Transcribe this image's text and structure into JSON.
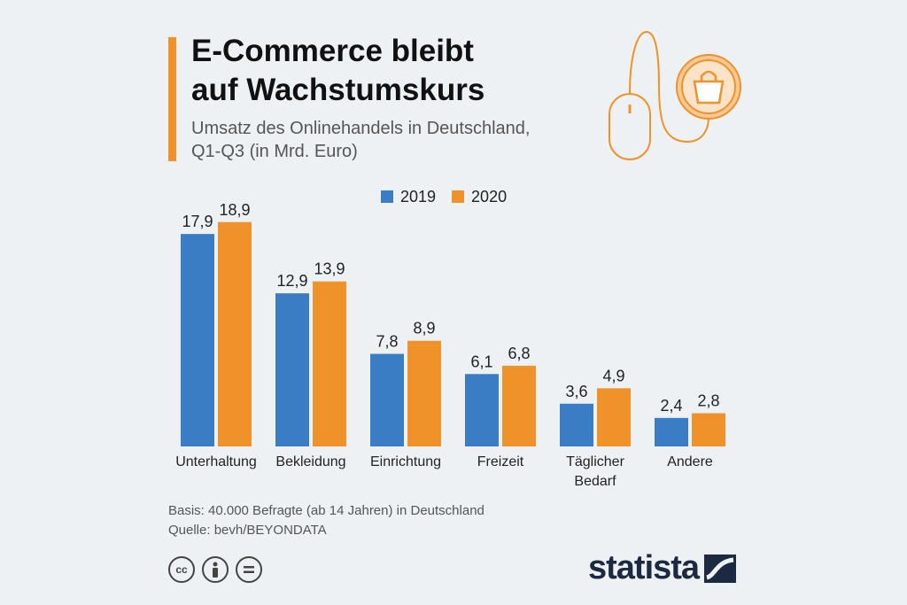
{
  "title_line1": "E-Commerce bleibt",
  "title_line2": "auf Wachstumskurs",
  "subtitle_line1": "Umsatz des Onlinehandels in Deutschland,",
  "subtitle_line2": "Q1-Q3 (in Mrd. Euro)",
  "footnote_basis": "Basis: 40.000 Befragte (ab 14 Jahren) in Deutschland",
  "footnote_source": "Quelle: bevh/BEYONDATA",
  "brand": "statista",
  "license_icons": [
    "cc-icon",
    "attribution-icon",
    "no-derivatives-icon"
  ],
  "license_cc_text": "cc",
  "decoration_icons": [
    "computer-mouse-icon",
    "shopping-bag-icon"
  ],
  "chart_data": {
    "type": "bar",
    "categories": [
      [
        "Unterhaltung"
      ],
      [
        "Bekleidung"
      ],
      [
        "Einrichtung"
      ],
      [
        "Freizeit"
      ],
      [
        "Täglicher",
        "Bedarf"
      ],
      [
        "Andere"
      ]
    ],
    "series": [
      {
        "name": "2019",
        "color": "#3b7dc4",
        "values": [
          17.9,
          12.9,
          7.8,
          6.1,
          3.6,
          2.4
        ],
        "labels": [
          "17,9",
          "12,9",
          "7,8",
          "6,1",
          "3,6",
          "2,4"
        ]
      },
      {
        "name": "2020",
        "color": "#f0922a",
        "values": [
          18.9,
          13.9,
          8.9,
          6.8,
          4.9,
          2.8
        ],
        "labels": [
          "18,9",
          "13,9",
          "8,9",
          "6,8",
          "4,9",
          "2,8"
        ]
      }
    ],
    "ylim": [
      0,
      20
    ],
    "grid": false,
    "legend_position": "top-center"
  }
}
